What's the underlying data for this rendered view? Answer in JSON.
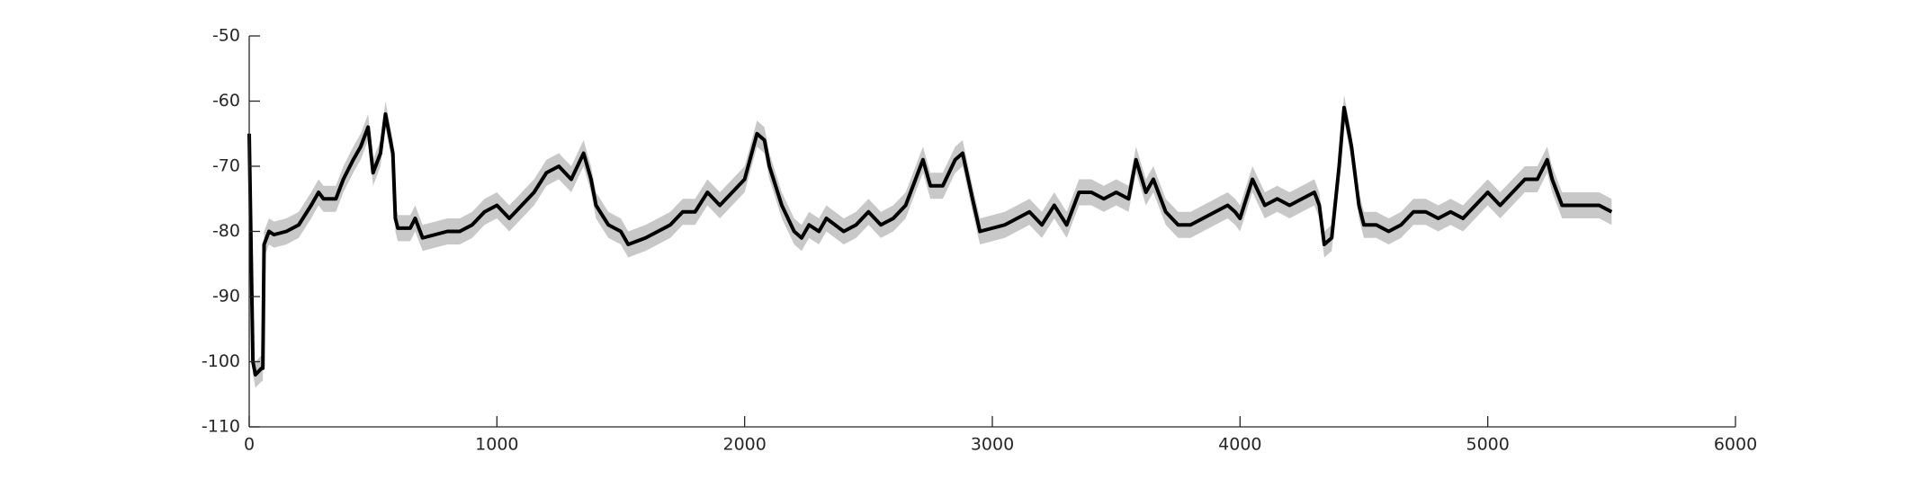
{
  "chart_data": {
    "type": "line",
    "x": [
      0,
      15,
      25,
      50,
      55,
      60,
      80,
      100,
      150,
      200,
      250,
      280,
      300,
      350,
      380,
      420,
      450,
      480,
      500,
      530,
      550,
      580,
      590,
      600,
      650,
      670,
      700,
      750,
      800,
      850,
      900,
      950,
      1000,
      1050,
      1100,
      1150,
      1200,
      1250,
      1300,
      1350,
      1380,
      1400,
      1450,
      1500,
      1530,
      1600,
      1650,
      1700,
      1750,
      1800,
      1850,
      1900,
      1950,
      2000,
      2050,
      2080,
      2100,
      2150,
      2200,
      2230,
      2260,
      2300,
      2330,
      2400,
      2450,
      2500,
      2550,
      2600,
      2650,
      2700,
      2720,
      2750,
      2800,
      2850,
      2880,
      2920,
      2950,
      3000,
      3050,
      3100,
      3150,
      3200,
      3250,
      3300,
      3350,
      3400,
      3450,
      3500,
      3550,
      3580,
      3620,
      3650,
      3700,
      3750,
      3800,
      3850,
      3900,
      3950,
      3980,
      4000,
      4050,
      4100,
      4150,
      4200,
      4250,
      4300,
      4320,
      4340,
      4370,
      4400,
      4420,
      4450,
      4480,
      4500,
      4550,
      4600,
      4650,
      4700,
      4750,
      4800,
      4850,
      4900,
      4950,
      5000,
      5050,
      5100,
      5150,
      5200,
      5240,
      5260,
      5300,
      5350,
      5400,
      5450,
      5500
    ],
    "values": [
      -65,
      -100,
      -102,
      -101,
      -101,
      -82,
      -80,
      -80.5,
      -80,
      -79,
      -76,
      -74,
      -75,
      -75,
      -72,
      -69,
      -67,
      -64,
      -71,
      -68,
      -62,
      -68,
      -78,
      -79.5,
      -79.5,
      -78,
      -81,
      -80.5,
      -80,
      -80,
      -79,
      -77,
      -76,
      -78,
      -76,
      -74,
      -71,
      -70,
      -72,
      -68,
      -72,
      -76,
      -79,
      -80,
      -82,
      -81,
      -80,
      -79,
      -77,
      -77,
      -74,
      -76,
      -74,
      -72,
      -65,
      -66,
      -70,
      -76,
      -80,
      -81,
      -79,
      -80,
      -78,
      -80,
      -79,
      -77,
      -79,
      -78,
      -76,
      -71,
      -69,
      -73,
      -73,
      -69,
      -68,
      -75,
      -80,
      -79.5,
      -79,
      -78,
      -77,
      -79,
      -76,
      -79,
      -74,
      -74,
      -75,
      -74,
      -75,
      -69,
      -74,
      -72,
      -77,
      -79,
      -79,
      -78,
      -77,
      -76,
      -77,
      -78,
      -72,
      -76,
      -75,
      -76,
      -75,
      -74,
      -76,
      -82,
      -81,
      -70,
      -61,
      -67,
      -76,
      -79,
      -79,
      -80,
      -79,
      -77,
      -77,
      -78,
      -77,
      -78,
      -76,
      -74,
      -76,
      -74,
      -72,
      -72,
      -69,
      -72,
      -76,
      -76,
      -76,
      -76,
      -77
    ],
    "band_upper": [
      -63,
      -98,
      -100,
      -99,
      -99,
      -80,
      -78,
      -78.5,
      -78,
      -77,
      -74,
      -72,
      -73,
      -73,
      -70,
      -67,
      -65,
      -62,
      -69,
      -66,
      -60,
      -66,
      -76,
      -77.5,
      -77.5,
      -76,
      -79,
      -78.5,
      -78,
      -78,
      -77,
      -75,
      -74,
      -76,
      -74,
      -72,
      -69,
      -68,
      -70,
      -66,
      -70,
      -74,
      -77,
      -78,
      -80,
      -79,
      -78,
      -77,
      -75,
      -75,
      -72,
      -74,
      -72,
      -70,
      -63,
      -64,
      -68,
      -74,
      -78,
      -79,
      -77,
      -78,
      -76,
      -78,
      -77,
      -75,
      -77,
      -76,
      -74,
      -69,
      -67,
      -71,
      -71,
      -67,
      -66,
      -73,
      -78,
      -77.5,
      -77,
      -76,
      -75,
      -77,
      -74,
      -77,
      -72,
      -72,
      -73,
      -72,
      -73,
      -67,
      -72,
      -70,
      -75,
      -77,
      -77,
      -76,
      -75,
      -74,
      -75,
      -76,
      -70,
      -74,
      -73,
      -74,
      -73,
      -72,
      -74,
      -80,
      -79,
      -68,
      -59,
      -65,
      -74,
      -77,
      -77,
      -78,
      -77,
      -75,
      -75,
      -76,
      -75,
      -76,
      -74,
      -72,
      -74,
      -72,
      -70,
      -70,
      -67,
      -70,
      -74,
      -74,
      -74,
      -74,
      -75
    ],
    "band_lower": [
      -67,
      -102,
      -104,
      -103,
      -103,
      -84,
      -82,
      -82.5,
      -82,
      -81,
      -78,
      -76,
      -77,
      -77,
      -74,
      -71,
      -69,
      -66,
      -73,
      -70,
      -64,
      -70,
      -80,
      -81.5,
      -81.5,
      -80,
      -83,
      -82.5,
      -82,
      -82,
      -81,
      -79,
      -78,
      -80,
      -78,
      -76,
      -73,
      -72,
      -74,
      -70,
      -74,
      -78,
      -81,
      -82,
      -84,
      -83,
      -82,
      -81,
      -79,
      -79,
      -76,
      -78,
      -76,
      -74,
      -67,
      -68,
      -72,
      -78,
      -82,
      -83,
      -81,
      -82,
      -80,
      -82,
      -81,
      -79,
      -81,
      -80,
      -78,
      -73,
      -71,
      -75,
      -75,
      -71,
      -70,
      -77,
      -82,
      -81.5,
      -81,
      -80,
      -79,
      -81,
      -78,
      -81,
      -76,
      -76,
      -77,
      -76,
      -77,
      -71,
      -76,
      -74,
      -79,
      -81,
      -81,
      -80,
      -79,
      -78,
      -79,
      -80,
      -74,
      -78,
      -77,
      -78,
      -77,
      -76,
      -78,
      -84,
      -83,
      -72,
      -63,
      -69,
      -78,
      -81,
      -81,
      -82,
      -81,
      -79,
      -79,
      -80,
      -79,
      -80,
      -78,
      -76,
      -78,
      -76,
      -74,
      -74,
      -71,
      -74,
      -78,
      -78,
      -78,
      -78,
      -79
    ],
    "color": "#000000",
    "band_color": "#c8c8c8",
    "xlim": [
      0,
      6000
    ],
    "xticks": [
      0,
      1000,
      2000,
      3000,
      4000,
      5000,
      6000
    ],
    "ylim": [
      -110,
      -50
    ],
    "yticks": [
      -110,
      -100,
      -90,
      -80,
      -70,
      -60,
      -50
    ]
  }
}
